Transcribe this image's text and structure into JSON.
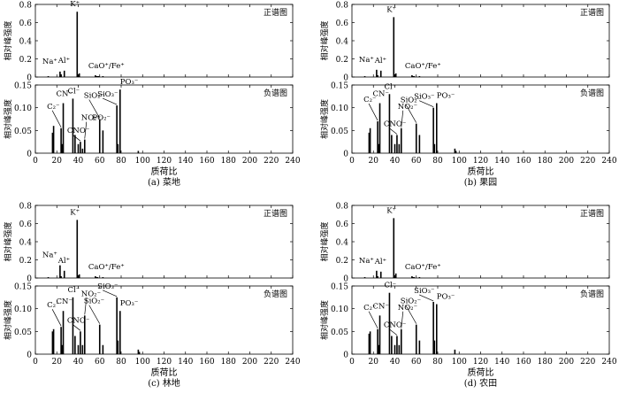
{
  "chart_data": [
    {
      "type": "bar",
      "caption": "(a)  菜地",
      "xlabel": "质荷比",
      "ylabel": "相对峰强度",
      "xlim": [
        0,
        240
      ],
      "xticks": [
        0,
        20,
        40,
        60,
        80,
        100,
        120,
        140,
        160,
        180,
        200,
        220,
        240
      ],
      "panels": [
        {
          "name": "正谱图",
          "ylim": [
            0,
            0.8
          ],
          "yticks": [
            "0",
            "0.2",
            "0.4",
            "0.6",
            "0.8"
          ],
          "peaks": [
            [
              12,
              0.01
            ],
            [
              23,
              0.06
            ],
            [
              24,
              0.03
            ],
            [
              27,
              0.07
            ],
            [
              39,
              0.72
            ],
            [
              40,
              0.03
            ],
            [
              41,
              0.04
            ],
            [
              56,
              0.02
            ],
            [
              57,
              0.01
            ],
            [
              58,
              0.01
            ],
            [
              59,
              0.01
            ],
            [
              63,
              0.01
            ]
          ],
          "annotations": [
            {
              "label": "K⁺",
              "x": 39,
              "y": 0.72
            },
            {
              "label": "Na⁺",
              "x": 23,
              "y": 0.06
            },
            {
              "label": "Al⁺",
              "x": 27,
              "y": 0.07
            },
            {
              "label": "CaO⁺/Fe⁺",
              "x": 56,
              "y": 0.02
            }
          ]
        },
        {
          "name": "负谱图",
          "ylim": [
            0,
            0.15
          ],
          "yticks": [
            "0",
            "0.05",
            "0.10",
            "0.15"
          ],
          "peaks": [
            [
              16,
              0.045
            ],
            [
              17,
              0.06
            ],
            [
              24,
              0.055
            ],
            [
              25,
              0.02
            ],
            [
              26,
              0.11
            ],
            [
              35,
              0.12
            ],
            [
              37,
              0.04
            ],
            [
              40,
              0.02
            ],
            [
              42,
              0.025
            ],
            [
              44,
              0.01
            ],
            [
              46,
              0.03
            ],
            [
              60,
              0.075
            ],
            [
              63,
              0.05
            ],
            [
              76,
              0.105
            ],
            [
              77,
              0.02
            ],
            [
              79,
              0.14
            ],
            [
              96,
              0.005
            ]
          ],
          "annotations": [
            {
              "label": "C₂⁻",
              "x": 24,
              "y": 0.055
            },
            {
              "label": "CN⁻",
              "x": 26,
              "y": 0.11
            },
            {
              "label": "Cl⁻",
              "x": 35,
              "y": 0.12
            },
            {
              "label": "CNO⁻",
              "x": 42,
              "y": 0.025
            },
            {
              "label": "NO₂⁻",
              "x": 46,
              "y": 0.03
            },
            {
              "label": "SiO₂⁻",
              "x": 60,
              "y": 0.075
            },
            {
              "label": "PO₂⁻",
              "x": 63,
              "y": 0.05
            },
            {
              "label": "SiO₃⁻",
              "x": 76,
              "y": 0.105
            },
            {
              "label": "PO₃⁻",
              "x": 79,
              "y": 0.14
            }
          ]
        }
      ]
    },
    {
      "type": "bar",
      "caption": "(b)  果园",
      "xlabel": "质荷比",
      "ylabel": "相对峰强度",
      "xlim": [
        0,
        240
      ],
      "xticks": [
        0,
        20,
        40,
        60,
        80,
        100,
        120,
        140,
        160,
        180,
        200,
        220,
        240
      ],
      "panels": [
        {
          "name": "正谱图",
          "ylim": [
            0,
            0.8
          ],
          "yticks": [
            "0",
            "0.2",
            "0.4",
            "0.6",
            "0.8"
          ],
          "peaks": [
            [
              12,
              0.01
            ],
            [
              23,
              0.08
            ],
            [
              24,
              0.02
            ],
            [
              27,
              0.07
            ],
            [
              39,
              0.66
            ],
            [
              40,
              0.03
            ],
            [
              41,
              0.04
            ],
            [
              56,
              0.02
            ],
            [
              57,
              0.01
            ],
            [
              58,
              0.01
            ],
            [
              63,
              0.01
            ]
          ],
          "annotations": [
            {
              "label": "K⁺",
              "x": 39,
              "y": 0.66
            },
            {
              "label": "Na⁺",
              "x": 23,
              "y": 0.08
            },
            {
              "label": "Al⁺",
              "x": 27,
              "y": 0.07
            },
            {
              "label": "CaO⁺/Fe⁺",
              "x": 56,
              "y": 0.02
            }
          ]
        },
        {
          "name": "负谱图",
          "ylim": [
            0,
            0.15
          ],
          "yticks": [
            "0",
            "0.05",
            "0.10",
            "0.15"
          ],
          "peaks": [
            [
              16,
              0.045
            ],
            [
              17,
              0.055
            ],
            [
              24,
              0.07
            ],
            [
              25,
              0.02
            ],
            [
              26,
              0.11
            ],
            [
              35,
              0.13
            ],
            [
              37,
              0.04
            ],
            [
              40,
              0.02
            ],
            [
              42,
              0.04
            ],
            [
              44,
              0.02
            ],
            [
              46,
              0.055
            ],
            [
              60,
              0.065
            ],
            [
              63,
              0.04
            ],
            [
              76,
              0.1
            ],
            [
              77,
              0.02
            ],
            [
              79,
              0.11
            ],
            [
              96,
              0.01
            ],
            [
              97,
              0.005
            ]
          ],
          "annotations": [
            {
              "label": "C₂⁻",
              "x": 24,
              "y": 0.07
            },
            {
              "label": "CN⁻",
              "x": 26,
              "y": 0.11
            },
            {
              "label": "Cl⁻",
              "x": 35,
              "y": 0.13
            },
            {
              "label": "CNO⁻",
              "x": 42,
              "y": 0.04
            },
            {
              "label": "NO₂⁻",
              "x": 46,
              "y": 0.055
            },
            {
              "label": "SiO₂⁻",
              "x": 60,
              "y": 0.065
            },
            {
              "label": "SiO₃⁻",
              "x": 76,
              "y": 0.1
            },
            {
              "label": "PO₃⁻",
              "x": 79,
              "y": 0.11
            }
          ]
        }
      ]
    },
    {
      "type": "bar",
      "caption": "(c)  林地",
      "xlabel": "质荷比",
      "ylabel": "相对峰强度",
      "xlim": [
        0,
        240
      ],
      "xticks": [
        0,
        20,
        40,
        60,
        80,
        100,
        120,
        140,
        160,
        180,
        200,
        220,
        240
      ],
      "panels": [
        {
          "name": "正谱图",
          "ylim": [
            0,
            0.8
          ],
          "yticks": [
            "0",
            "0.2",
            "0.4",
            "0.6",
            "0.8"
          ],
          "peaks": [
            [
              12,
              0.01
            ],
            [
              23,
              0.14
            ],
            [
              24,
              0.02
            ],
            [
              27,
              0.08
            ],
            [
              39,
              0.64
            ],
            [
              40,
              0.03
            ],
            [
              41,
              0.04
            ],
            [
              56,
              0.02
            ],
            [
              57,
              0.01
            ],
            [
              58,
              0.01
            ],
            [
              63,
              0.01
            ]
          ],
          "annotations": [
            {
              "label": "K⁺",
              "x": 39,
              "y": 0.64
            },
            {
              "label": "Na⁺",
              "x": 23,
              "y": 0.14
            },
            {
              "label": "Al⁺",
              "x": 27,
              "y": 0.08
            },
            {
              "label": "CaO⁺/Fe⁺",
              "x": 56,
              "y": 0.02
            }
          ]
        },
        {
          "name": "负谱图",
          "ylim": [
            0,
            0.15
          ],
          "yticks": [
            "0",
            "0.05",
            "0.10",
            "0.15"
          ],
          "peaks": [
            [
              16,
              0.05
            ],
            [
              17,
              0.055
            ],
            [
              24,
              0.06
            ],
            [
              25,
              0.02
            ],
            [
              26,
              0.095
            ],
            [
              35,
              0.125
            ],
            [
              37,
              0.04
            ],
            [
              40,
              0.02
            ],
            [
              42,
              0.05
            ],
            [
              44,
              0.02
            ],
            [
              46,
              0.085
            ],
            [
              60,
              0.065
            ],
            [
              63,
              0.02
            ],
            [
              76,
              0.125
            ],
            [
              77,
              0.03
            ],
            [
              79,
              0.095
            ],
            [
              96,
              0.01
            ],
            [
              97,
              0.005
            ]
          ],
          "annotations": [
            {
              "label": "C₂⁻",
              "x": 24,
              "y": 0.06
            },
            {
              "label": "CN⁻",
              "x": 26,
              "y": 0.095
            },
            {
              "label": "Cl⁻",
              "x": 35,
              "y": 0.125
            },
            {
              "label": "CNO⁻",
              "x": 42,
              "y": 0.05
            },
            {
              "label": "NO₂⁻",
              "x": 46,
              "y": 0.085
            },
            {
              "label": "SiO₂⁻",
              "x": 60,
              "y": 0.065
            },
            {
              "label": "SiO₃⁻",
              "x": 76,
              "y": 0.125
            },
            {
              "label": "PO₃⁻",
              "x": 79,
              "y": 0.095
            }
          ]
        }
      ]
    },
    {
      "type": "bar",
      "caption": "(d)  农田",
      "xlabel": "质荷比",
      "ylabel": "相对峰强度",
      "xlim": [
        0,
        240
      ],
      "xticks": [
        0,
        20,
        40,
        60,
        80,
        100,
        120,
        140,
        160,
        180,
        200,
        220,
        240
      ],
      "panels": [
        {
          "name": "正谱图",
          "ylim": [
            0,
            0.8
          ],
          "yticks": [
            "0",
            "0.2",
            "0.4",
            "0.6",
            "0.8"
          ],
          "peaks": [
            [
              12,
              0.01
            ],
            [
              23,
              0.08
            ],
            [
              24,
              0.02
            ],
            [
              27,
              0.07
            ],
            [
              39,
              0.66
            ],
            [
              40,
              0.03
            ],
            [
              41,
              0.05
            ],
            [
              56,
              0.02
            ],
            [
              57,
              0.01
            ],
            [
              58,
              0.01
            ],
            [
              63,
              0.01
            ]
          ],
          "annotations": [
            {
              "label": "K⁺",
              "x": 39,
              "y": 0.66
            },
            {
              "label": "Na⁺",
              "x": 23,
              "y": 0.08
            },
            {
              "label": "Al⁺",
              "x": 27,
              "y": 0.07
            },
            {
              "label": "CaO⁺/Fe⁺",
              "x": 56,
              "y": 0.02
            }
          ]
        },
        {
          "name": "负谱图",
          "ylim": [
            0,
            0.15
          ],
          "yticks": [
            "0",
            "0.05",
            "0.10",
            "0.15"
          ],
          "peaks": [
            [
              16,
              0.045
            ],
            [
              17,
              0.05
            ],
            [
              24,
              0.055
            ],
            [
              25,
              0.02
            ],
            [
              26,
              0.085
            ],
            [
              35,
              0.135
            ],
            [
              37,
              0.04
            ],
            [
              40,
              0.02
            ],
            [
              42,
              0.04
            ],
            [
              44,
              0.02
            ],
            [
              46,
              0.055
            ],
            [
              60,
              0.065
            ],
            [
              63,
              0.03
            ],
            [
              76,
              0.115
            ],
            [
              77,
              0.03
            ],
            [
              79,
              0.11
            ],
            [
              96,
              0.01
            ]
          ],
          "annotations": [
            {
              "label": "C₂⁻",
              "x": 24,
              "y": 0.055
            },
            {
              "label": "CN⁻",
              "x": 26,
              "y": 0.085
            },
            {
              "label": "Cl⁻",
              "x": 35,
              "y": 0.135
            },
            {
              "label": "CNO⁻",
              "x": 42,
              "y": 0.04
            },
            {
              "label": "NO₂⁻",
              "x": 46,
              "y": 0.055
            },
            {
              "label": "SiO₂⁻",
              "x": 60,
              "y": 0.065
            },
            {
              "label": "SiO₃⁻",
              "x": 76,
              "y": 0.115
            },
            {
              "label": "PO₃⁻",
              "x": 79,
              "y": 0.11
            }
          ]
        }
      ]
    }
  ]
}
